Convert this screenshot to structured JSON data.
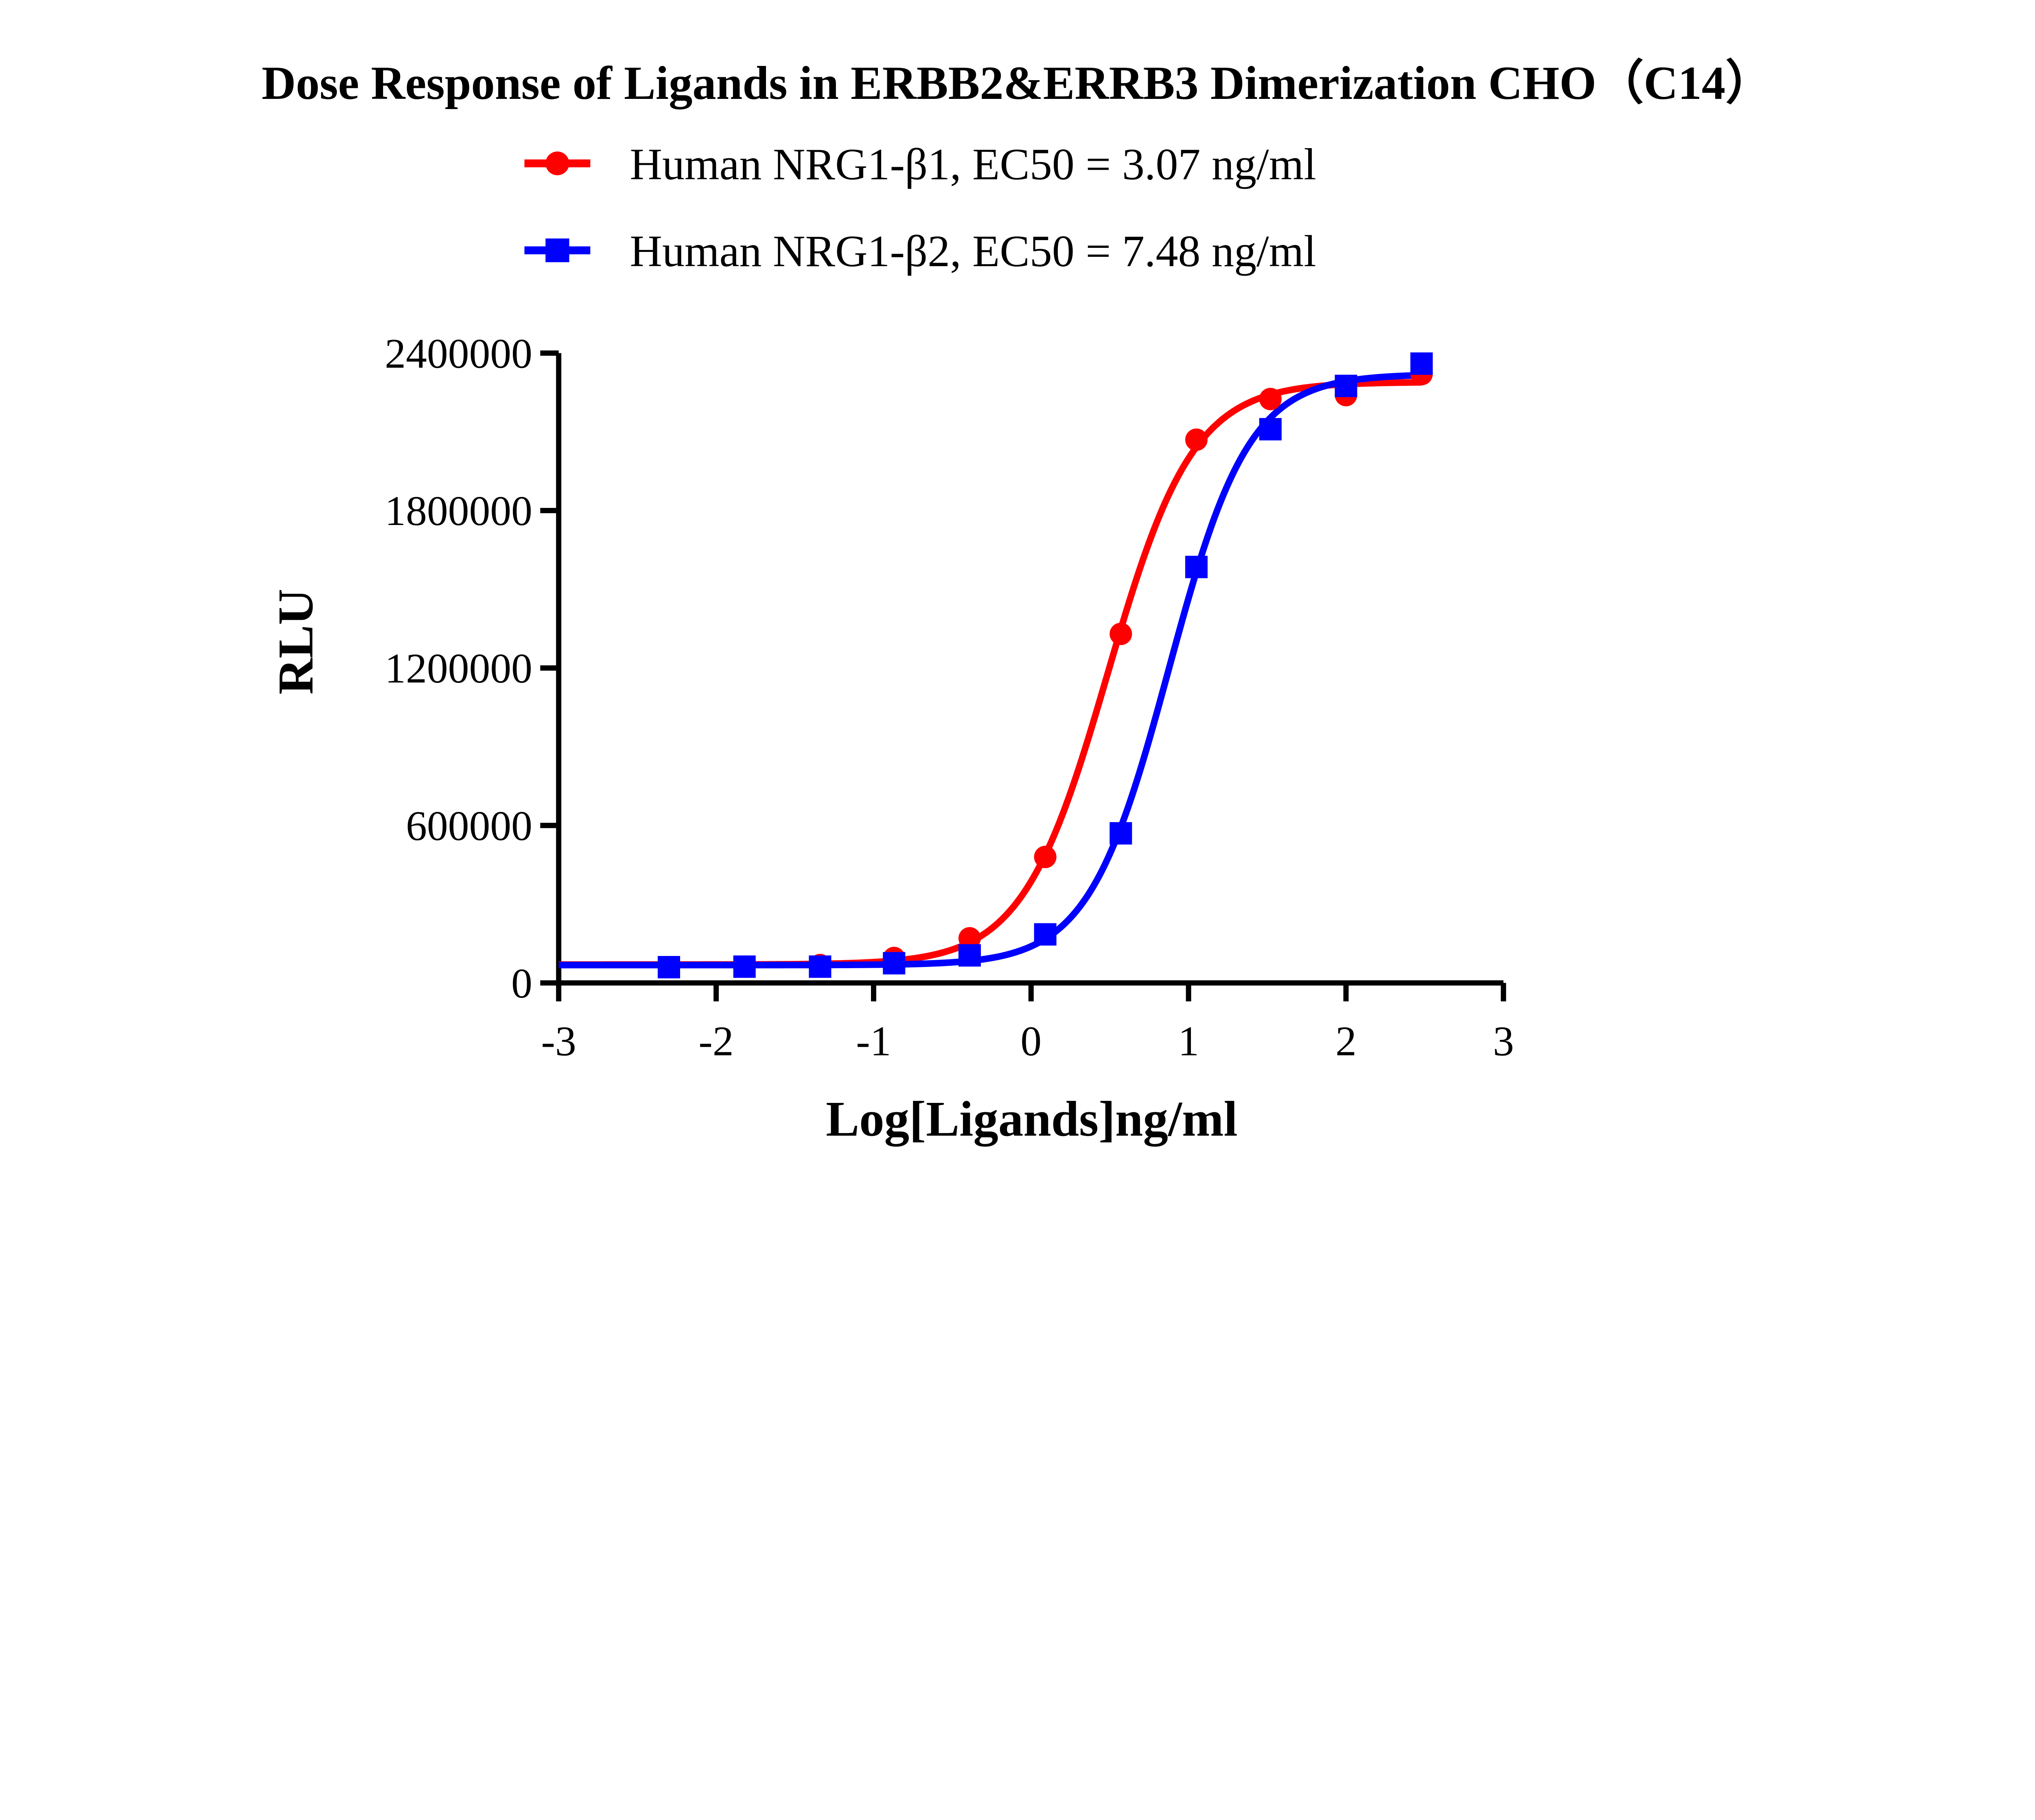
{
  "chart_data": {
    "type": "scatter",
    "title": "Dose Response of Ligands in ERBB2&ERRB3 Dimerization CHO（C14）",
    "xlabel": "Log[Ligands]ng/ml",
    "ylabel": "RLU",
    "xlim": [
      -3,
      3
    ],
    "ylim": [
      0,
      2400000
    ],
    "xticks": [
      "-3",
      "-2",
      "-1",
      "0",
      "1",
      "2",
      "3"
    ],
    "yticks": [
      "0",
      "600000",
      "1200000",
      "1800000",
      "2400000"
    ],
    "grid": false,
    "legend_placement": "top-center",
    "series": [
      {
        "name": "Human NRG1-β1, EC50 = 3.07 ng/ml",
        "color": "#ff0000",
        "marker": "circle",
        "x": [
          -2.3,
          -1.82,
          -1.34,
          -0.87,
          -0.39,
          0.09,
          0.57,
          1.05,
          1.52,
          2.0,
          2.48
        ],
        "y": [
          60000,
          62000,
          68000,
          95000,
          170000,
          480000,
          1330000,
          2070000,
          2225000,
          2240000,
          2320000
        ],
        "fit": {
          "bottom": 70000,
          "top": 2290000,
          "logEC50": 0.487,
          "hill": 1.6
        }
      },
      {
        "name": "Human NRG1-β2, EC50 = 7.48 ng/ml",
        "color": "#0000ff",
        "marker": "square",
        "x": [
          -2.3,
          -1.82,
          -1.34,
          -0.87,
          -0.39,
          0.09,
          0.57,
          1.05,
          1.52,
          2.0,
          2.48
        ],
        "y": [
          60000,
          62000,
          62000,
          75000,
          105000,
          185000,
          570000,
          1585000,
          2110000,
          2275000,
          2360000
        ],
        "fit": {
          "bottom": 68000,
          "top": 2320000,
          "logEC50": 0.874,
          "hill": 1.7
        }
      }
    ]
  }
}
